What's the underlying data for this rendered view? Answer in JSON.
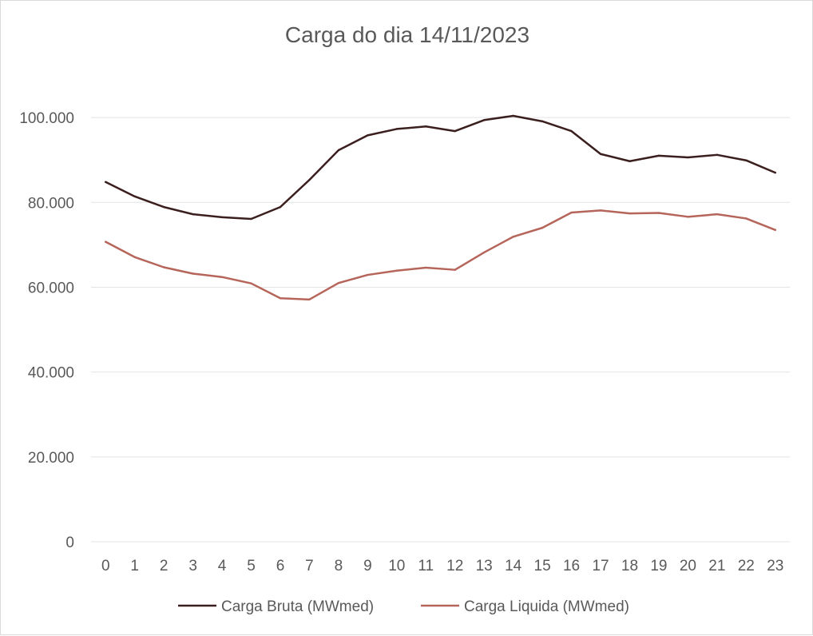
{
  "chart_data": {
    "type": "line",
    "title": "Carga do dia 14/11/2023",
    "xlabel": "",
    "ylabel": "",
    "x": [
      0,
      1,
      2,
      3,
      4,
      5,
      6,
      7,
      8,
      9,
      10,
      11,
      12,
      13,
      14,
      15,
      16,
      17,
      18,
      19,
      20,
      21,
      22,
      23
    ],
    "ylim": [
      0,
      110000
    ],
    "yticks": [
      0,
      20000,
      40000,
      60000,
      80000,
      100000
    ],
    "ytick_labels": [
      "0",
      "20.000",
      "40.000",
      "60.000",
      "80.000",
      "100.000"
    ],
    "grid": true,
    "legend_position": "bottom",
    "series": [
      {
        "name": "Carga Bruta (MWmed)",
        "color": "#3b1f1f",
        "values": [
          84800,
          81400,
          78900,
          77200,
          76500,
          76100,
          78900,
          85300,
          92300,
          95800,
          97300,
          97900,
          96800,
          99400,
          100400,
          99100,
          96800,
          91400,
          89700,
          91000,
          90600,
          91200,
          89900,
          87000
        ]
      },
      {
        "name": "Carga Liquida (MWmed)",
        "color": "#b5655a",
        "values": [
          70700,
          67100,
          64700,
          63200,
          62400,
          60900,
          57400,
          57100,
          61000,
          62900,
          63900,
          64600,
          64100,
          68200,
          71900,
          74000,
          77600,
          78100,
          77400,
          77500,
          76600,
          77200,
          76200,
          73500
        ]
      }
    ]
  }
}
